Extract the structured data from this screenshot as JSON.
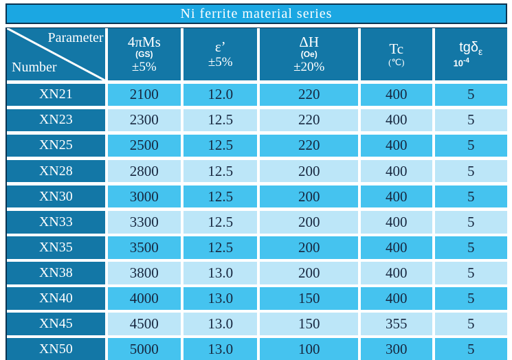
{
  "title": "Ni ferrite material series",
  "table": {
    "corner": {
      "top_label": "Parameter",
      "bottom_label": "Number"
    },
    "columns": [
      {
        "id": "4pims",
        "line1": "4πMs",
        "line2": "(GS)",
        "line3": "±5%"
      },
      {
        "id": "epsilon",
        "line1": "ε’",
        "line3": "±5%"
      },
      {
        "id": "delta-h",
        "line1": "ΔH",
        "line2": "(Oe)",
        "line3": "±20%"
      },
      {
        "id": "tc",
        "line1": "Tc",
        "line2": "(℃)"
      },
      {
        "id": "tg-delta",
        "line1": "tgδ",
        "sub": "ε",
        "line2": "10",
        "sup": "-4"
      }
    ],
    "rows": [
      {
        "number": "XN21",
        "values": [
          "2100",
          "12.0",
          "220",
          "400",
          "5"
        ]
      },
      {
        "number": "XN23",
        "values": [
          "2300",
          "12.5",
          "220",
          "400",
          "5"
        ]
      },
      {
        "number": "XN25",
        "values": [
          "2500",
          "12.5",
          "220",
          "400",
          "5"
        ]
      },
      {
        "number": "XN28",
        "values": [
          "2800",
          "12.5",
          "200",
          "400",
          "5"
        ]
      },
      {
        "number": "XN30",
        "values": [
          "3000",
          "12.5",
          "200",
          "400",
          "5"
        ]
      },
      {
        "number": "XN33",
        "values": [
          "3300",
          "12.5",
          "200",
          "400",
          "5"
        ]
      },
      {
        "number": "XN35",
        "values": [
          "3500",
          "12.5",
          "200",
          "400",
          "5"
        ]
      },
      {
        "number": "XN38",
        "values": [
          "3800",
          "13.0",
          "200",
          "400",
          "5"
        ]
      },
      {
        "number": "XN40",
        "values": [
          "4000",
          "13.0",
          "150",
          "400",
          "5"
        ]
      },
      {
        "number": "XN45",
        "values": [
          "4500",
          "13.0",
          "150",
          "355",
          "5"
        ]
      },
      {
        "number": "XN50",
        "values": [
          "5000",
          "13.0",
          "100",
          "300",
          "5"
        ]
      }
    ]
  },
  "colors": {
    "title_bg": "#1BA7E2",
    "header_bg": "#1377A6",
    "row_medium": "#45C3EF",
    "row_light": "#BCE6F8",
    "gridline": "#FFFFFF",
    "outer_border": "#0A3350",
    "text_dark": "#16263E",
    "text_light": "#FFFFFF"
  }
}
